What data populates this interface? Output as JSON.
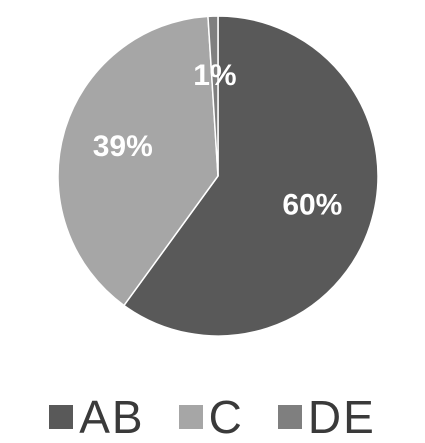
{
  "chart_data": {
    "type": "pie",
    "categories": [
      "AB",
      "C",
      "DE"
    ],
    "values": [
      60,
      39,
      1
    ],
    "data_labels": [
      "60%",
      "39%",
      "1%"
    ],
    "colors": [
      "#595959",
      "#a6a6a6",
      "#7f7f7f"
    ],
    "start_angle_deg": 0,
    "direction": "clockwise",
    "legend_position": "bottom"
  }
}
